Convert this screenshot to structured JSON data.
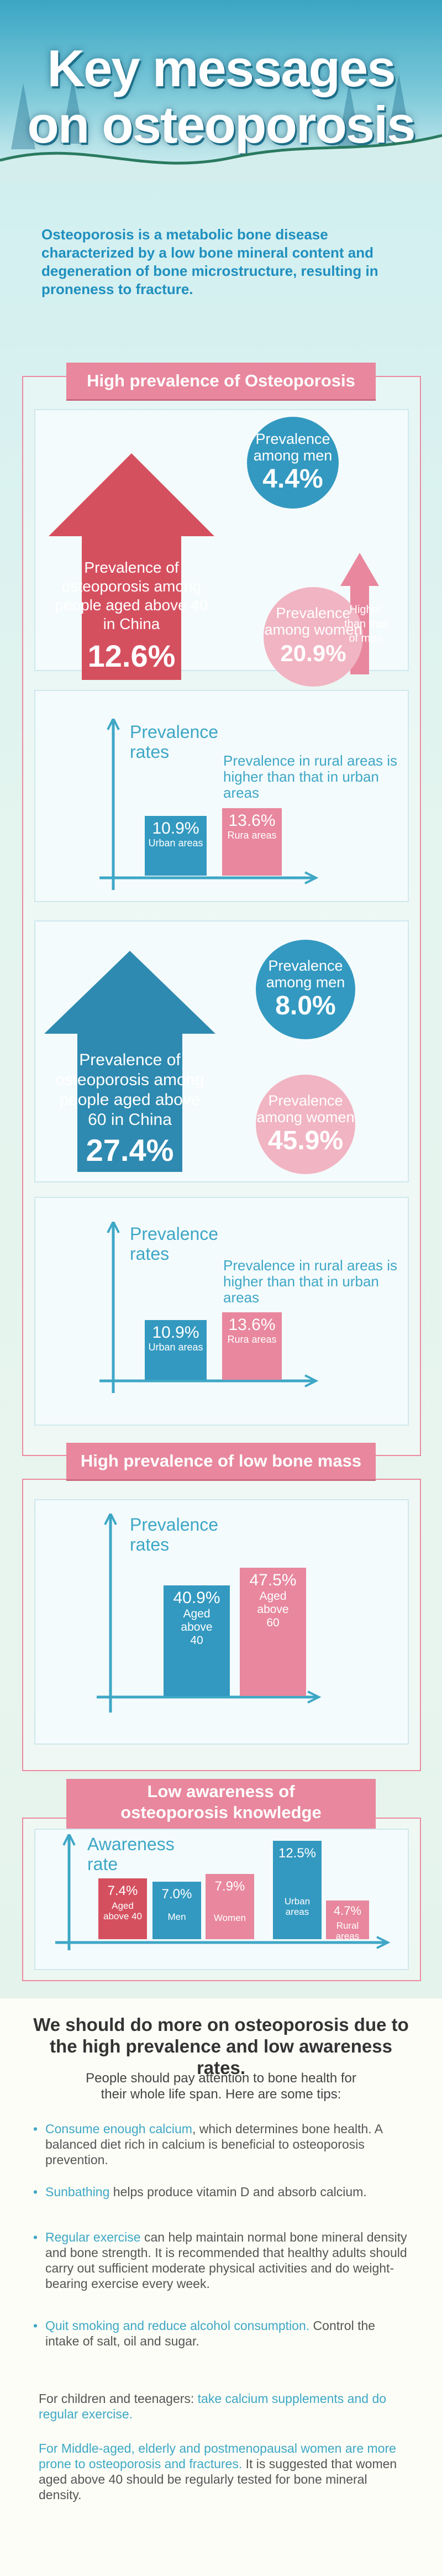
{
  "header": {
    "title_line1": "Key messages",
    "title_line2": "on osteoporosis"
  },
  "intro": "Osteoporosis is a metabolic bone disease characterized by a low bone mineral content and degeneration of bone microstructure, resulting in proneness to fracture.",
  "colors": {
    "pink": "#e8879d",
    "red": "#d5505f",
    "blue": "#2e8ab0",
    "light_blue": "#3ea7c6"
  },
  "section1": {
    "title": "High prevalence of Osteoporosis",
    "age40": {
      "arrow_text": "Prevalence of osteoporosis among people aged above 40 in China",
      "arrow_value": "12.6%",
      "men_label": "Prevalence among men",
      "men_value": "4.4%",
      "women_label": "Prevalence among women",
      "women_value": "20.9%",
      "callout": "Higher than that of men",
      "chart": {
        "ylabel": "Prevalence rates",
        "note": "Prevalence in rural areas is higher than that in urban areas",
        "bars": [
          {
            "value": "10.9%",
            "category": "Urban areas"
          },
          {
            "value": "13.6%",
            "category": "Rura areas"
          }
        ]
      }
    },
    "age60": {
      "arrow_text": "Prevalence of osteoporosis among people aged above 60 in China",
      "arrow_value": "27.4%",
      "men_label": "Prevalence among men",
      "men_value": "8.0%",
      "women_label": "Prevalence among women",
      "women_value": "45.9%",
      "chart": {
        "ylabel": "Prevalence rates",
        "note": "Prevalence in rural areas is higher than that in urban areas",
        "bars": [
          {
            "value": "10.9%",
            "category": "Urban areas"
          },
          {
            "value": "13.6%",
            "category": "Rura areas"
          }
        ]
      }
    }
  },
  "section2": {
    "title": "High prevalence of low bone mass",
    "chart": {
      "ylabel": "Prevalence rates",
      "bars": [
        {
          "value": "40.9%",
          "category": "Aged above 40"
        },
        {
          "value": "47.5%",
          "category": "Aged above 60"
        }
      ]
    }
  },
  "section3": {
    "title_line1": "Low awareness of",
    "title_line2": "osteoporosis knowledge",
    "chart": {
      "ylabel": "Awareness rate",
      "bars": [
        {
          "value": "7.4%",
          "category": "Aged above 40"
        },
        {
          "value": "7.0%",
          "category": "Men"
        },
        {
          "value": "7.9%",
          "category": "Women"
        },
        {
          "value": "12.5%",
          "category": "Urban areas"
        },
        {
          "value": "4.7%",
          "category": "Rural areas"
        }
      ]
    }
  },
  "chart_data": [
    {
      "type": "bar",
      "categories": [
        "Urban areas",
        "Rura areas"
      ],
      "values": [
        10.9,
        13.6
      ],
      "ylabel": "Prevalence rates"
    },
    {
      "type": "bar",
      "categories": [
        "Urban areas",
        "Rura areas"
      ],
      "values": [
        10.9,
        13.6
      ],
      "ylabel": "Prevalence rates"
    },
    {
      "type": "bar",
      "categories": [
        "Aged above 40",
        "Aged above 60"
      ],
      "values": [
        40.9,
        47.5
      ],
      "ylabel": "Prevalence rates"
    },
    {
      "type": "bar",
      "categories": [
        "Aged above 40",
        "Men",
        "Women",
        "Urban areas",
        "Rural areas"
      ],
      "values": [
        7.4,
        7.0,
        7.9,
        12.5,
        4.7
      ],
      "ylabel": "Awareness rate"
    }
  ],
  "advice": {
    "heading": "We should do more on osteoporosis due to the high prevalence and low awareness rates.",
    "lead": "People should pay attention to bone health for their whole life span. Here are some tips:",
    "tips": [
      {
        "hl": "Consume enough calcium",
        "rest": ", which determines bone health. A balanced diet rich in calcium is beneficial to osteoporosis prevention."
      },
      {
        "hl": "Sunbathing",
        "rest": " helps produce vitamin D and absorb calcium."
      },
      {
        "hl": "Regular exercise",
        "rest": " can help maintain normal bone mineral density and bone strength. It is recommended that healthy adults should carry out sufficient moderate physical activities and do weight-bearing exercise every week."
      },
      {
        "hl": "Quit smoking and reduce alcohol consumption.",
        "rest": " Control the intake of salt, oil and sugar."
      }
    ],
    "children_prefix": "For children and teenagers: ",
    "children_hl": "take calcium supplements and do regular exercise.",
    "elderly_hl": "For Middle-aged, elderly and postmenopausal women are more prone to osteoporosis and fractures.",
    "elderly_rest": " It is suggested that women aged above 40 should be regularly tested for bone mineral density."
  }
}
